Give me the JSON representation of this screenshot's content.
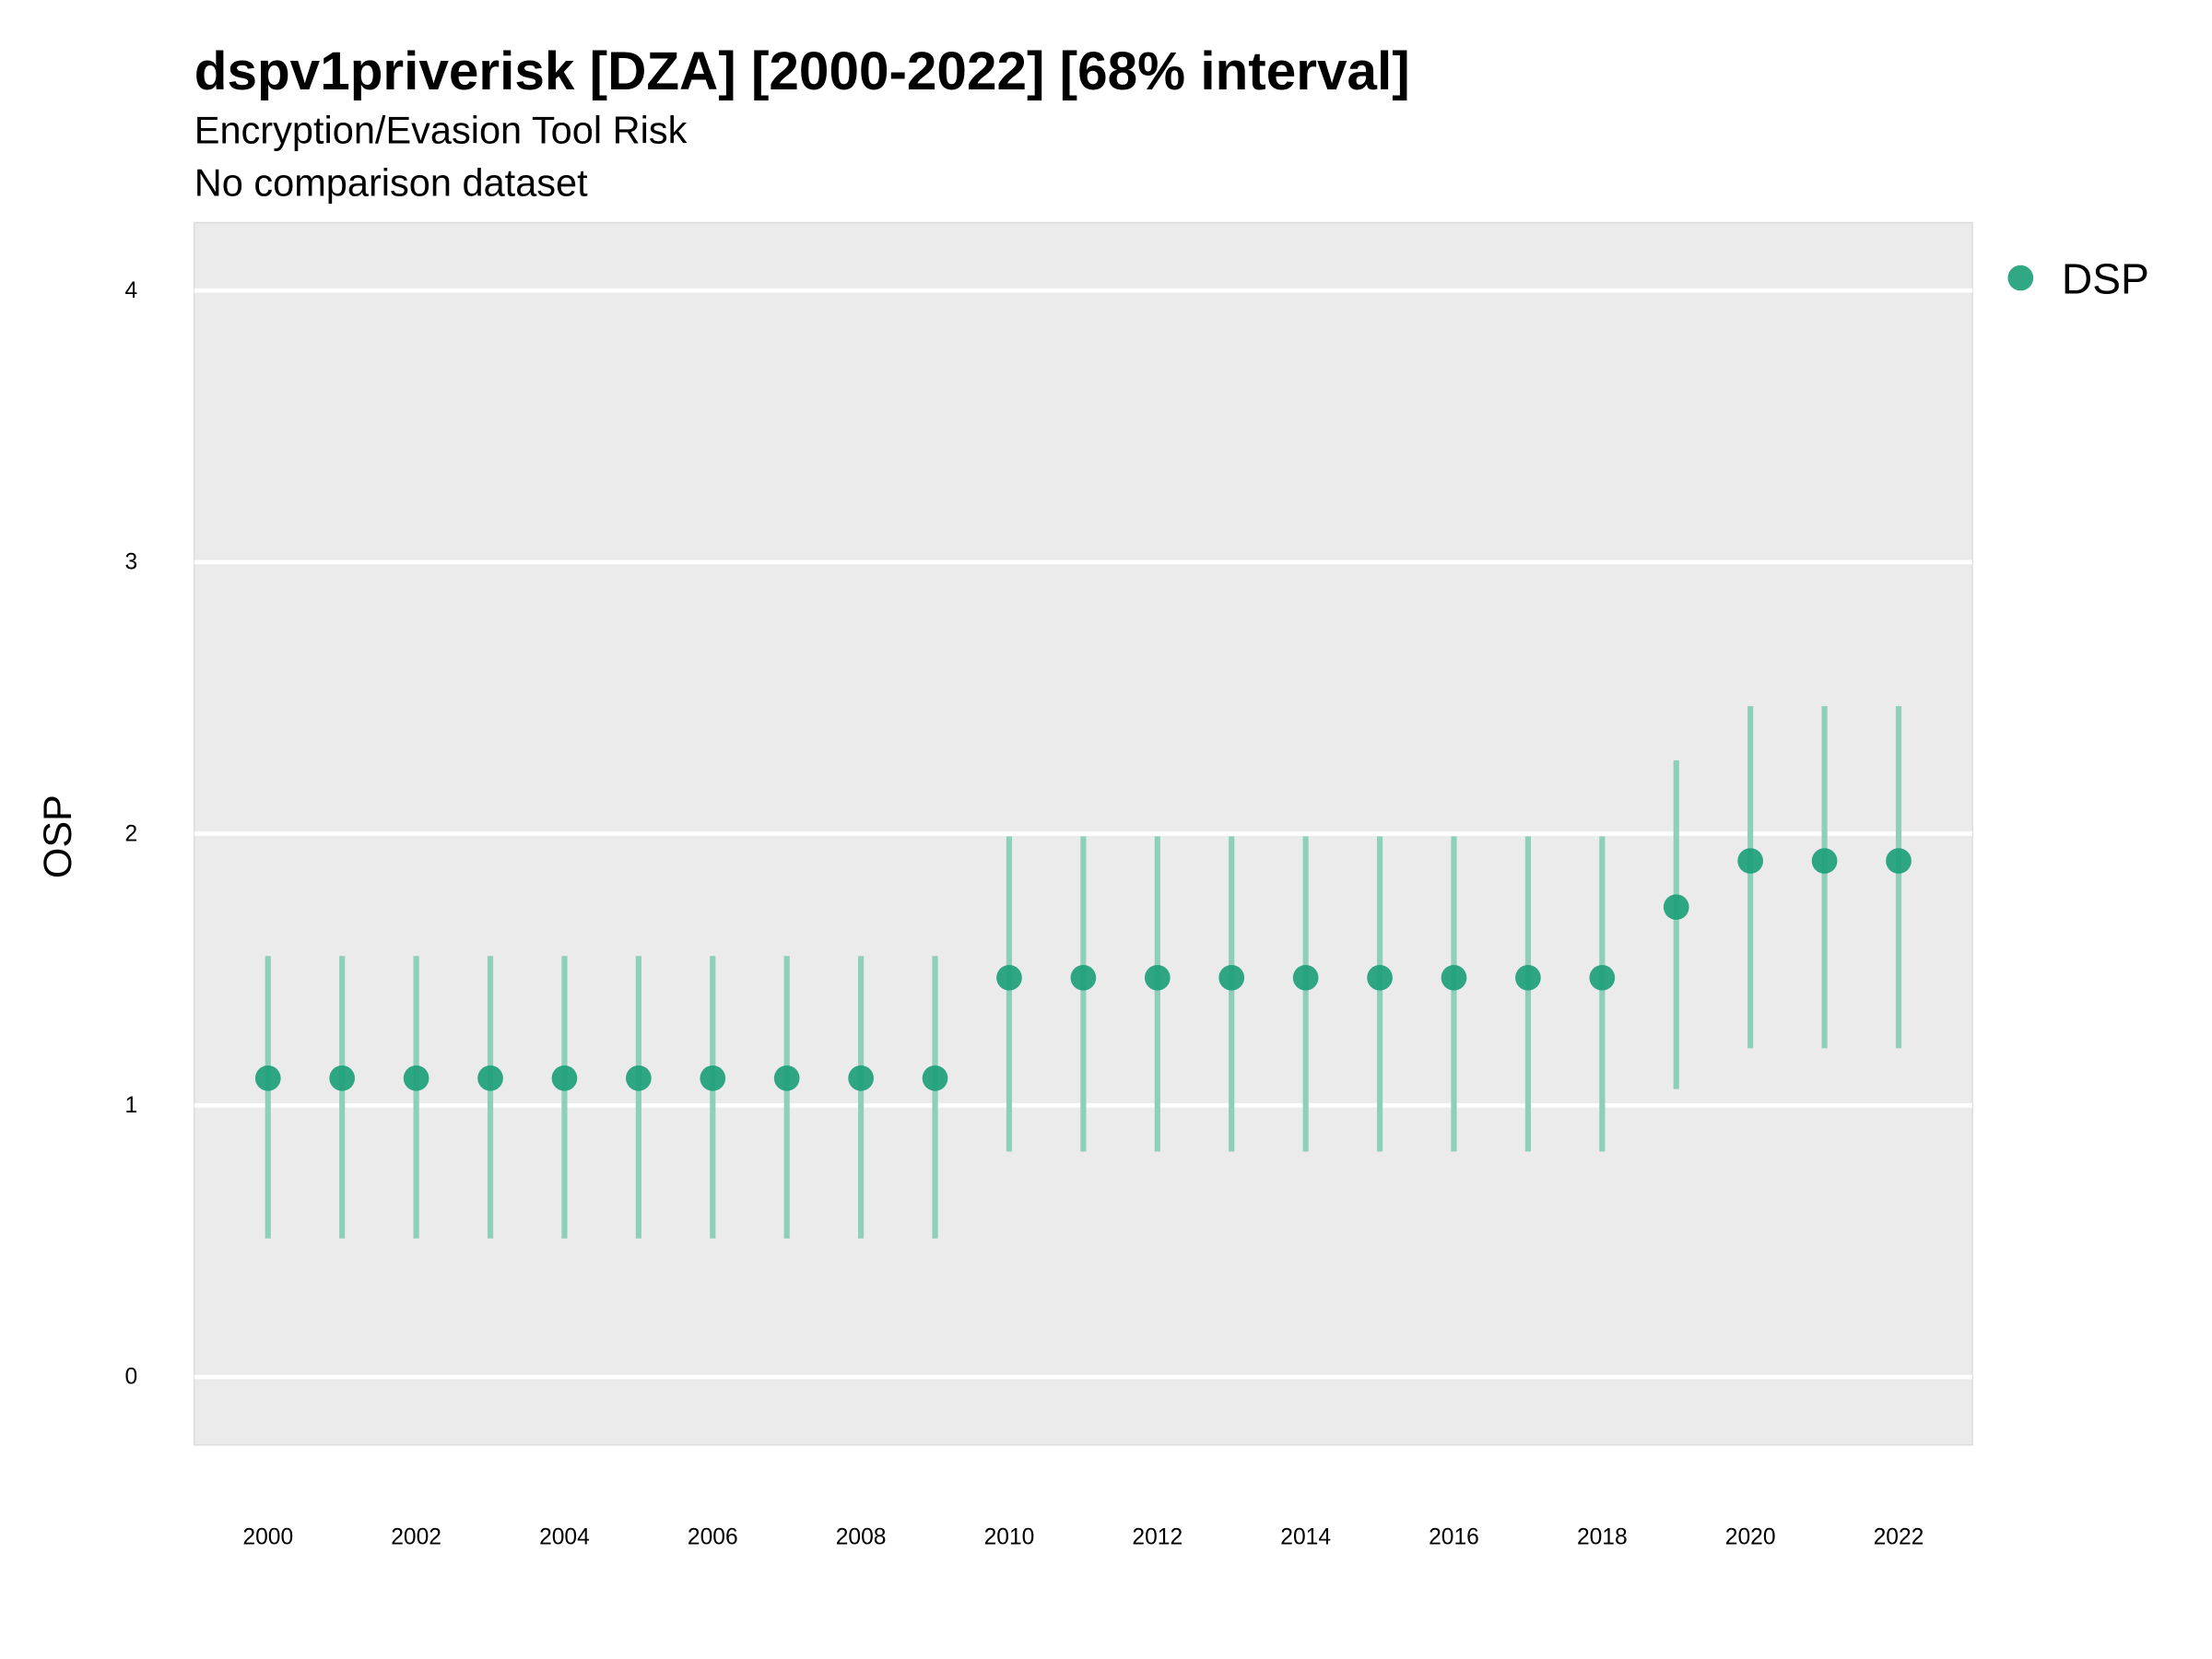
{
  "chart_data": {
    "type": "scatter",
    "title": "dspv1priverisk [DZA] [2000-2022] [68% interval]",
    "subtitle": "Encryption/Evasion Tool Risk",
    "caption_line": "No comparison dataset",
    "xlabel": "",
    "ylabel": "OSP",
    "ylim": [
      -0.25,
      4.25
    ],
    "xlim": [
      1999,
      2023
    ],
    "grid": true,
    "legend_position": "right",
    "y_ticks": [
      "0",
      "1",
      "2",
      "3",
      "4"
    ],
    "x_ticks": [
      "2000",
      "2002",
      "2004",
      "2006",
      "2008",
      "2010",
      "2012",
      "2014",
      "2016",
      "2018",
      "2020",
      "2022"
    ],
    "colors": {
      "point": "#1b9e77",
      "interval": "#8ecfb9",
      "panel": "#ebebeb",
      "grid": "#ffffff"
    },
    "series": [
      {
        "name": "DSP",
        "x": [
          2000,
          2001,
          2002,
          2003,
          2004,
          2005,
          2006,
          2007,
          2008,
          2009,
          2010,
          2011,
          2012,
          2013,
          2014,
          2015,
          2016,
          2017,
          2018,
          2019,
          2020,
          2021,
          2022
        ],
        "y": [
          1.1,
          1.1,
          1.1,
          1.1,
          1.1,
          1.1,
          1.1,
          1.1,
          1.1,
          1.1,
          1.47,
          1.47,
          1.47,
          1.47,
          1.47,
          1.47,
          1.47,
          1.47,
          1.47,
          1.73,
          1.9,
          1.9,
          1.9
        ],
        "lower": [
          0.51,
          0.51,
          0.51,
          0.51,
          0.51,
          0.51,
          0.51,
          0.51,
          0.51,
          0.51,
          0.83,
          0.83,
          0.83,
          0.83,
          0.83,
          0.83,
          0.83,
          0.83,
          0.83,
          1.06,
          1.21,
          1.21,
          1.21
        ],
        "upper": [
          1.55,
          1.55,
          1.55,
          1.55,
          1.55,
          1.55,
          1.55,
          1.55,
          1.55,
          1.55,
          1.99,
          1.99,
          1.99,
          1.99,
          1.99,
          1.99,
          1.99,
          1.99,
          1.99,
          2.27,
          2.47,
          2.47,
          2.47
        ]
      }
    ]
  }
}
